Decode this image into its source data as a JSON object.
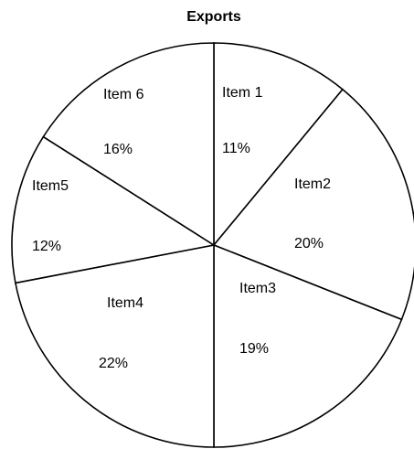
{
  "chart_data": {
    "type": "pie",
    "title": "Exports",
    "categories": [
      "Item 1",
      "Item2",
      "Item3",
      "Item4",
      "Item5",
      "Item 6"
    ],
    "values": [
      11,
      20,
      19,
      22,
      12,
      16
    ],
    "value_labels": [
      "11%",
      "20%",
      "19%",
      "22%",
      "12%",
      "16%"
    ],
    "legend": "none",
    "colors": {
      "fill": "#ffffff",
      "stroke": "#000000",
      "text": "#000000"
    }
  }
}
